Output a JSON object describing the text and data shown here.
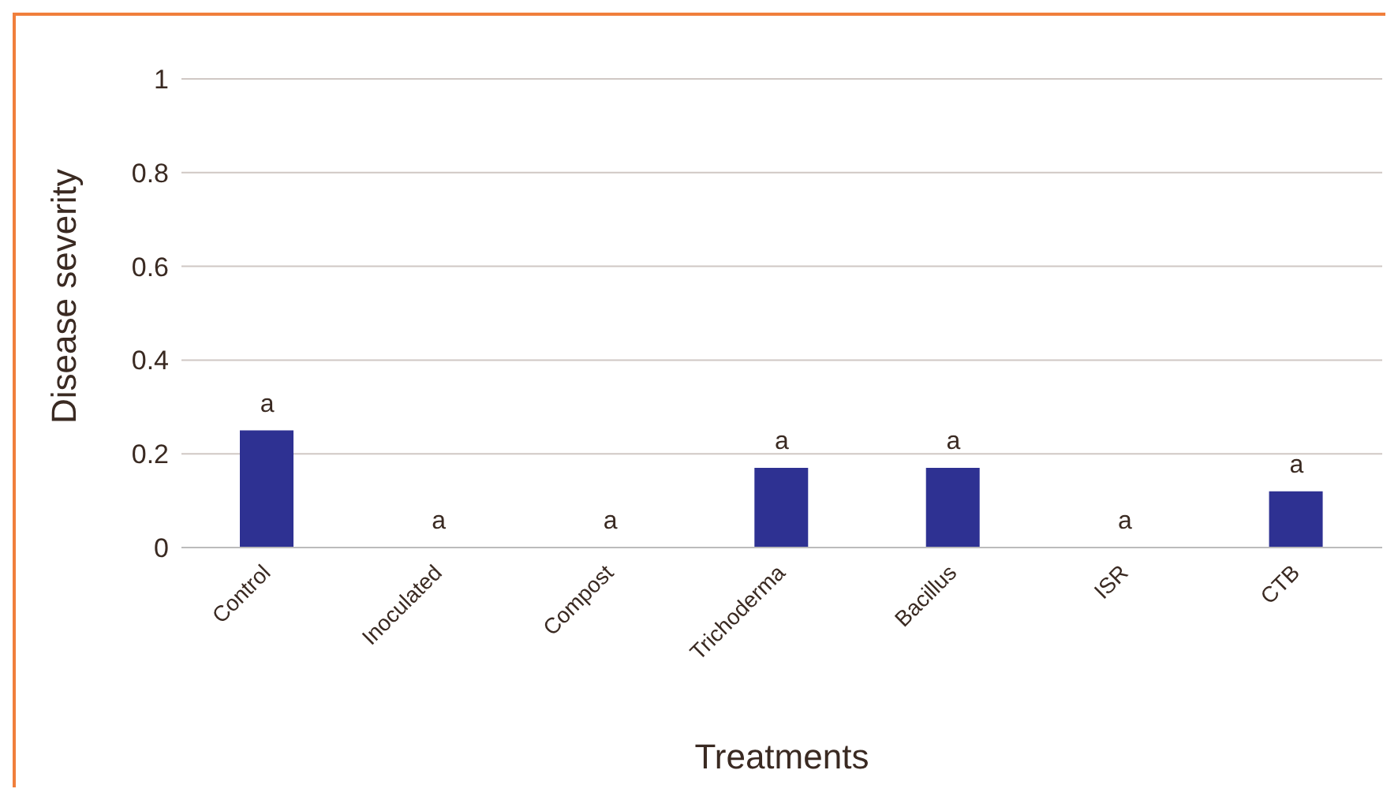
{
  "chart_data": {
    "type": "bar",
    "xlabel": "Treatments",
    "ylabel": "Disease severity",
    "categories": [
      "Control",
      "Inoculated",
      "Compost",
      "Trichoderma",
      "Bacillus",
      "ISR",
      "CTB"
    ],
    "values": [
      0.25,
      0,
      0,
      0.17,
      0.17,
      0,
      0.12
    ],
    "color": "#2e3192",
    "ylim": [
      0,
      1
    ],
    "yticks": [
      0,
      0.2,
      0.4,
      0.6,
      0.8,
      1
    ],
    "grid": "y",
    "annotations": [
      {
        "text": "a",
        "x": "Control",
        "y": 0.25
      },
      {
        "text": "a",
        "x": "Inoculated",
        "y": 0
      },
      {
        "text": "a",
        "x": "Compost",
        "y": 0
      },
      {
        "text": "a",
        "x": "Trichoderma",
        "y": 0.17
      },
      {
        "text": "a",
        "x": "Bacillus",
        "y": 0.17
      },
      {
        "text": "a",
        "x": "ISR",
        "y": 0
      },
      {
        "text": "a",
        "x": "CTB",
        "y": 0.12
      }
    ]
  }
}
